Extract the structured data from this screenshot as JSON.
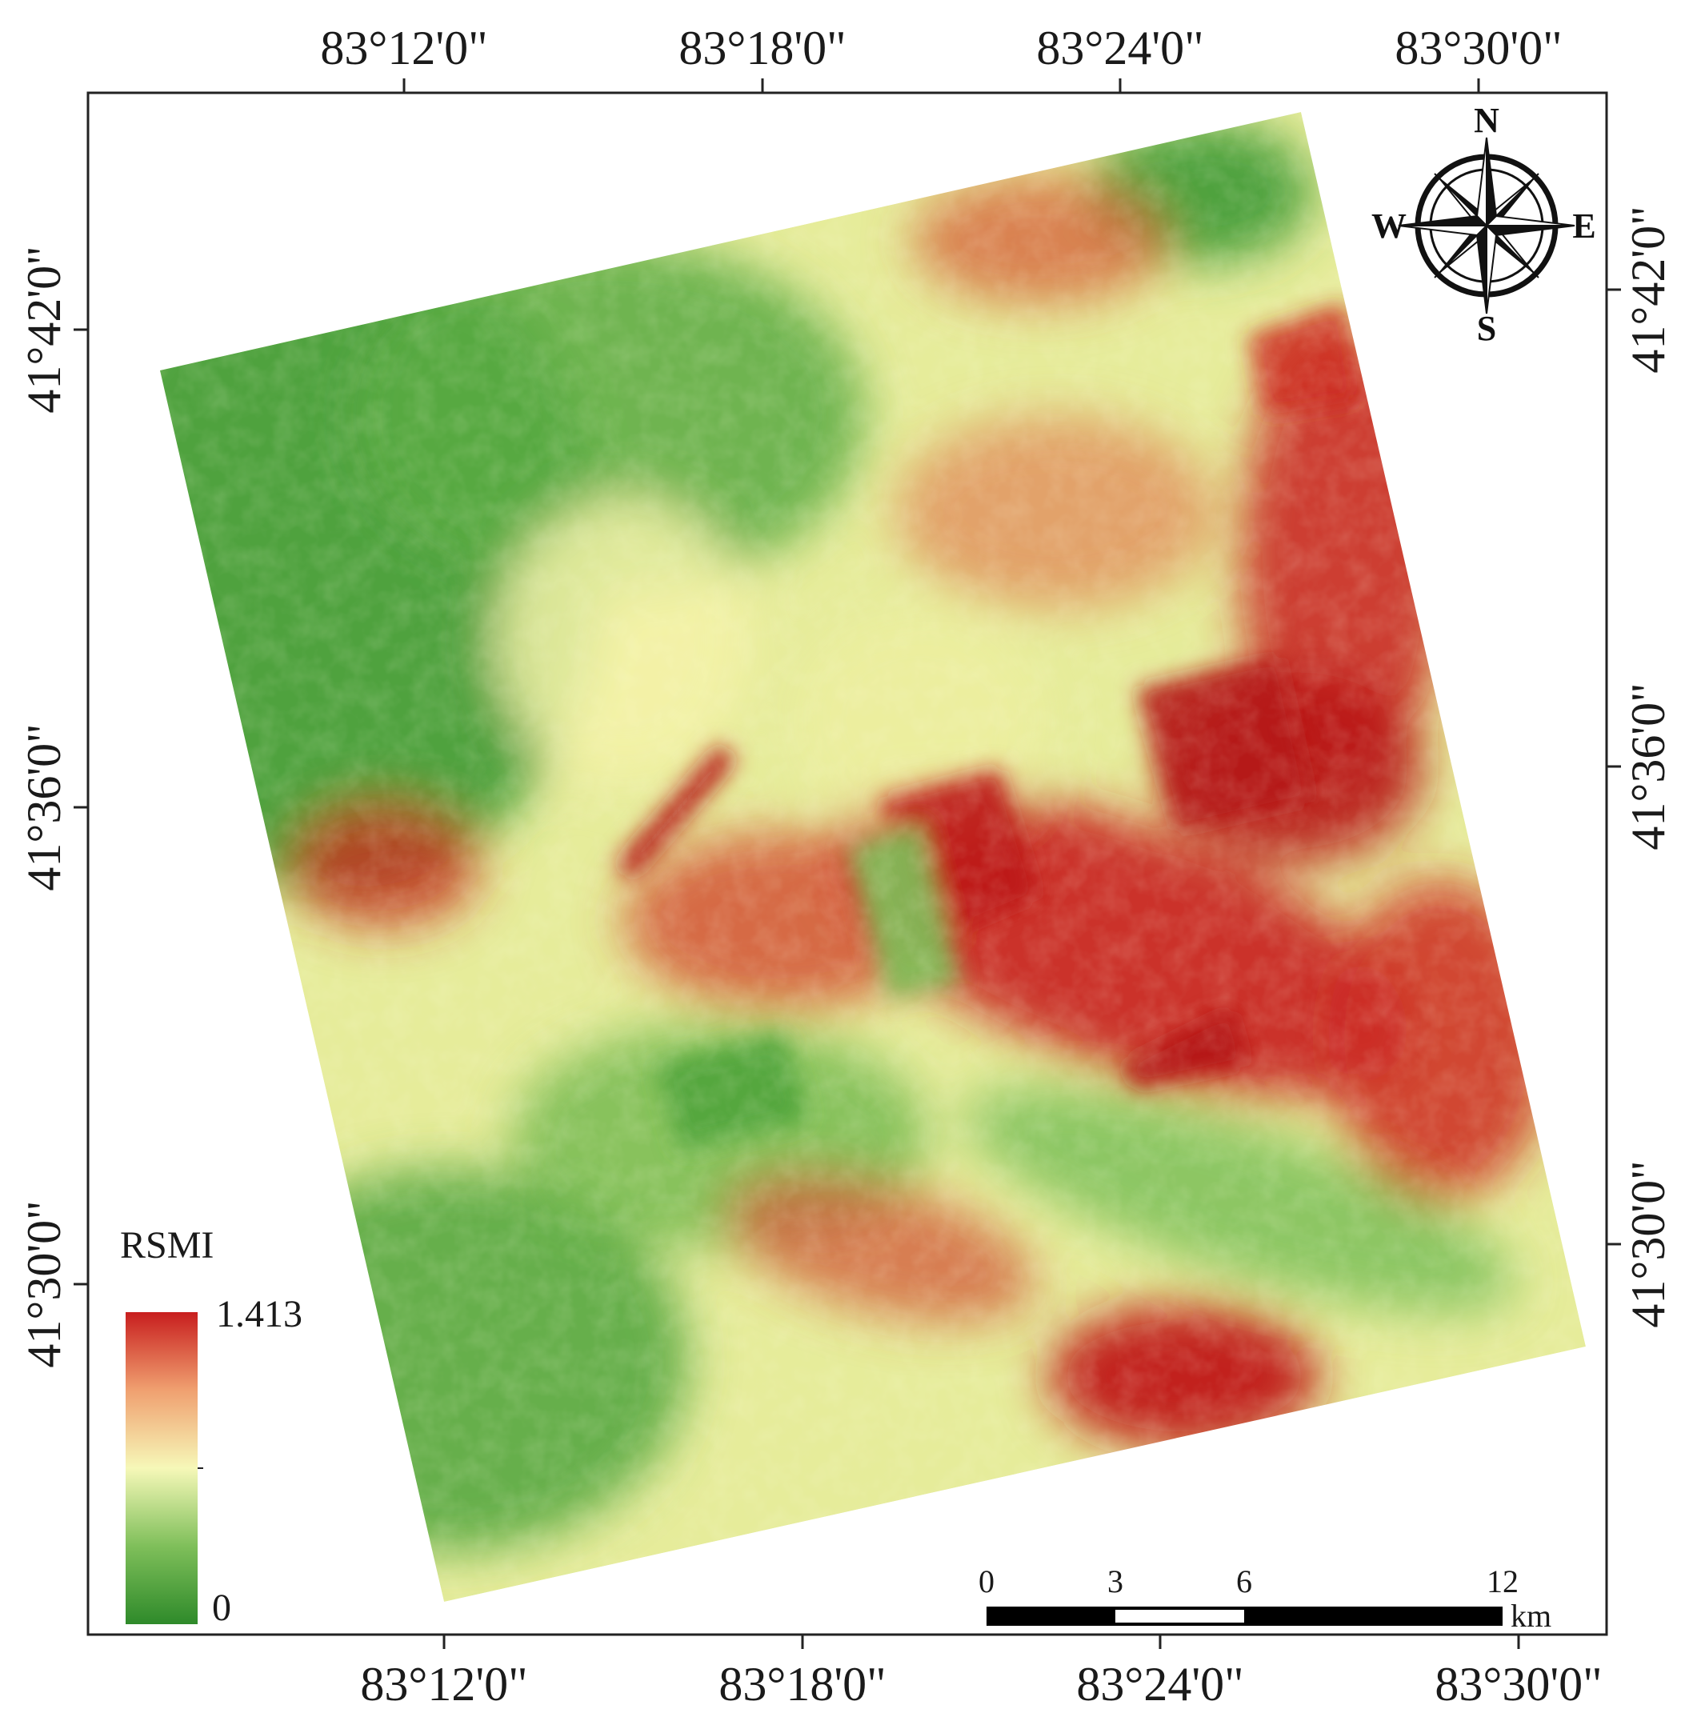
{
  "map": {
    "legend": {
      "title": "RSMI",
      "max_label": "1.413",
      "min_label": "0",
      "ramp_colors": [
        "#2e8a2a",
        "#7fbf5a",
        "#f6f8b8",
        "#f0a070",
        "#c81e1e"
      ]
    },
    "top_longitude_labels": [
      "83°12'0\"",
      "83°18'0\"",
      "83°24'0\"",
      "83°30'0\""
    ],
    "bottom_longitude_labels": [
      "83°12'0\"",
      "83°18'0\"",
      "83°24'0\"",
      "83°30'0\""
    ],
    "left_latitude_labels": [
      "41°42'0\"",
      "41°36'0\"",
      "41°30'0\""
    ],
    "right_latitude_labels": [
      "41°42'0\"",
      "41°36'0\"",
      "41°30'0\""
    ],
    "compass": {
      "n": "N",
      "s": "S",
      "e": "E",
      "w": "W"
    },
    "scale_bar": {
      "ticks": [
        "0",
        "3",
        "6",
        "12"
      ],
      "unit": "km"
    },
    "colors": {
      "dry": "#c81e1e",
      "moist": "#2e8a2a",
      "mid": "#f6f8b8"
    }
  }
}
